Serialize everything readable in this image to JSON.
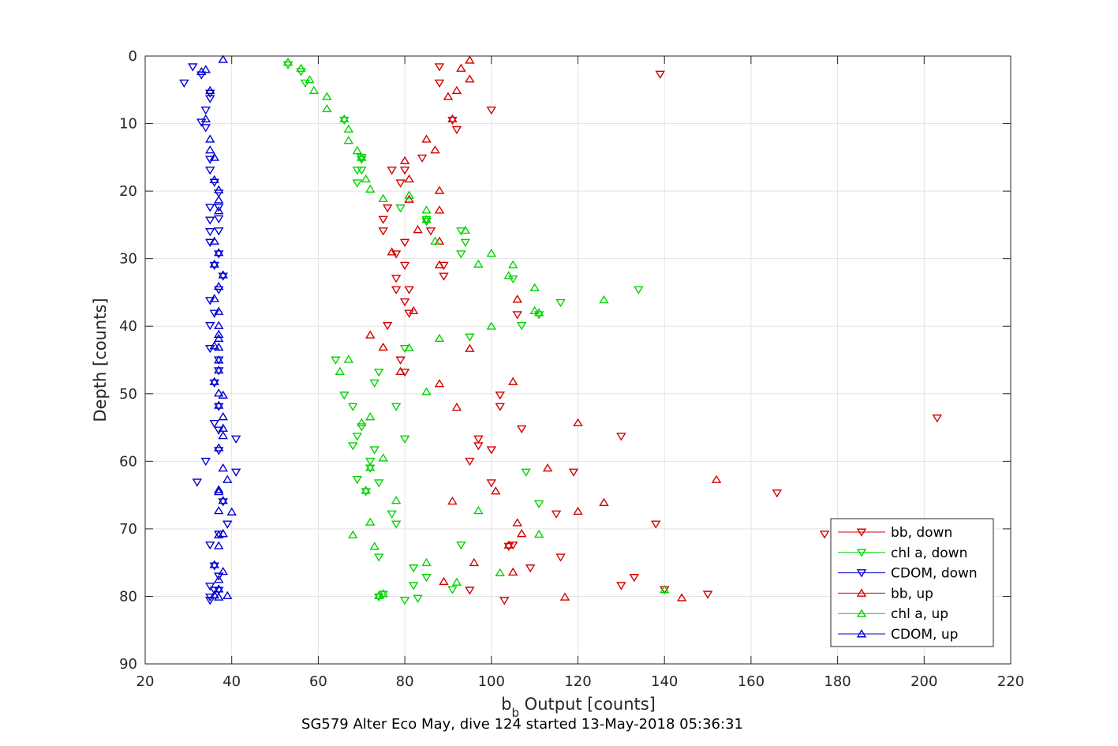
{
  "chart_data": {
    "type": "scatter",
    "xlabel_main": "b",
    "xlabel_sub": "b",
    "xlabel_rest": " Output [counts]",
    "ylabel": "Depth [counts]",
    "footer": "SG579 Alter Eco May, dive 124 started 13-May-2018 05:36:31",
    "xlim": [
      20,
      220
    ],
    "ylim": [
      0,
      90
    ],
    "y_reversed": true,
    "grid": true,
    "legend_position": "bottom-right",
    "xticks": [
      "20",
      "40",
      "60",
      "80",
      "100",
      "120",
      "140",
      "160",
      "180",
      "200",
      "220"
    ],
    "yticks": [
      "0",
      "10",
      "20",
      "30",
      "40",
      "50",
      "60",
      "70",
      "80",
      "90"
    ],
    "series": [
      {
        "name": "bb, down",
        "color": "#d40000",
        "marker": "triangle-down",
        "points": [
          [
            139,
            2.7
          ],
          [
            91,
            9.5
          ],
          [
            77,
            16.9
          ],
          [
            79,
            18.8
          ],
          [
            76,
            22.5
          ],
          [
            75,
            24.2
          ],
          [
            75,
            25.9
          ],
          [
            80,
            27.6
          ],
          [
            78,
            29.3
          ],
          [
            80,
            31
          ],
          [
            78,
            32.9
          ],
          [
            78,
            34.6
          ],
          [
            81,
            34.6
          ],
          [
            80,
            36.4
          ],
          [
            81,
            38.1
          ],
          [
            76,
            39.9
          ],
          [
            80,
            46.8
          ],
          [
            102,
            50.2
          ],
          [
            102,
            51.9
          ],
          [
            203,
            53.6
          ],
          [
            107,
            55.2
          ],
          [
            130,
            56.3
          ],
          [
            97,
            56.7
          ],
          [
            97,
            57.7
          ],
          [
            100,
            58.3
          ],
          [
            95,
            60
          ],
          [
            119,
            61.6
          ],
          [
            100,
            63.2
          ],
          [
            166,
            64.7
          ],
          [
            115,
            67.8
          ],
          [
            138,
            69.3
          ],
          [
            177,
            70.8
          ],
          [
            105,
            72.4
          ],
          [
            104,
            72.6
          ],
          [
            116,
            74.2
          ],
          [
            109,
            75.8
          ],
          [
            133,
            77.2
          ],
          [
            130,
            78.4
          ],
          [
            140,
            79
          ],
          [
            150,
            79.7
          ],
          [
            95,
            79.1
          ],
          [
            103,
            80.6
          ],
          [
            88,
            1.6
          ],
          [
            88,
            4
          ],
          [
            100,
            8
          ],
          [
            92,
            10.9
          ],
          [
            84,
            15.1
          ],
          [
            80,
            16.9
          ],
          [
            86,
            25.9
          ],
          [
            89,
            31
          ],
          [
            89,
            32.6
          ],
          [
            106,
            38.3
          ],
          [
            79,
            45
          ]
        ]
      },
      {
        "name": "chl a, down",
        "color": "#00d400",
        "marker": "triangle-down",
        "points": [
          [
            53,
            1.3
          ],
          [
            56,
            2.3
          ],
          [
            57,
            4
          ],
          [
            66,
            9.5
          ],
          [
            70,
            15
          ],
          [
            70,
            15.3
          ],
          [
            69,
            16.9
          ],
          [
            70,
            16.9
          ],
          [
            69,
            18.8
          ],
          [
            79,
            22.5
          ],
          [
            85,
            24.2
          ],
          [
            85,
            24.5
          ],
          [
            93,
            25.9
          ],
          [
            94,
            27.6
          ],
          [
            93,
            29.3
          ],
          [
            105,
            33
          ],
          [
            134,
            34.6
          ],
          [
            116,
            36.5
          ],
          [
            111,
            38.3
          ],
          [
            107,
            39.9
          ],
          [
            95,
            41.6
          ],
          [
            80,
            43.3
          ],
          [
            64,
            45
          ],
          [
            74,
            46.8
          ],
          [
            73,
            48.4
          ],
          [
            66,
            50.2
          ],
          [
            68,
            51.9
          ],
          [
            78,
            51.9
          ],
          [
            70,
            54.9
          ],
          [
            69,
            56.3
          ],
          [
            80,
            56.7
          ],
          [
            68,
            57.7
          ],
          [
            73,
            58.3
          ],
          [
            72,
            60
          ],
          [
            108,
            61.6
          ],
          [
            72,
            61
          ],
          [
            69,
            62.7
          ],
          [
            74,
            63.2
          ],
          [
            71,
            64.5
          ],
          [
            111,
            66.3
          ],
          [
            77,
            67.8
          ],
          [
            78,
            69.3
          ],
          [
            93,
            72.4
          ],
          [
            74,
            74.2
          ],
          [
            82,
            75.8
          ],
          [
            85,
            77.2
          ],
          [
            82,
            78.4
          ],
          [
            91,
            79
          ],
          [
            74,
            80.1
          ],
          [
            80,
            80.6
          ],
          [
            83,
            80.3
          ],
          [
            75,
            79.7
          ]
        ]
      },
      {
        "name": "CDOM, down",
        "color": "#0000d4",
        "marker": "triangle-down",
        "points": [
          [
            31,
            1.6
          ],
          [
            29,
            4
          ],
          [
            33,
            2.8
          ],
          [
            35,
            5.5
          ],
          [
            35,
            6.3
          ],
          [
            34,
            8
          ],
          [
            33,
            9.8
          ],
          [
            34,
            10.6
          ],
          [
            35,
            15.3
          ],
          [
            35,
            16.9
          ],
          [
            36,
            18.7
          ],
          [
            37,
            20.3
          ],
          [
            37,
            22.4
          ],
          [
            35,
            22.4
          ],
          [
            37,
            24.1
          ],
          [
            35,
            24.3
          ],
          [
            37,
            25.9
          ],
          [
            35,
            26
          ],
          [
            35,
            27.6
          ],
          [
            37,
            29.3
          ],
          [
            36,
            31
          ],
          [
            38,
            32.6
          ],
          [
            37,
            34.6
          ],
          [
            35,
            36.2
          ],
          [
            36,
            38.1
          ],
          [
            35,
            39.9
          ],
          [
            35,
            43.3
          ],
          [
            37,
            45
          ],
          [
            37,
            46.6
          ],
          [
            36,
            48.4
          ],
          [
            37,
            51.9
          ],
          [
            36,
            54.4
          ],
          [
            37,
            55.4
          ],
          [
            41,
            56.7
          ],
          [
            37,
            58.4
          ],
          [
            34,
            60
          ],
          [
            41,
            61.6
          ],
          [
            32,
            63.1
          ],
          [
            38,
            66
          ],
          [
            39,
            69.3
          ],
          [
            37,
            70.8
          ],
          [
            35,
            72.4
          ],
          [
            36,
            75.5
          ],
          [
            37,
            77
          ],
          [
            35,
            78.5
          ],
          [
            36,
            79.1
          ],
          [
            37,
            79.1
          ],
          [
            35,
            80.1
          ],
          [
            35,
            80.6
          ]
        ]
      },
      {
        "name": "bb, up",
        "color": "#d40000",
        "marker": "triangle-up",
        "points": [
          [
            95,
            0.6
          ],
          [
            93,
            1.8
          ],
          [
            95,
            3.4
          ],
          [
            92,
            5.1
          ],
          [
            90,
            6
          ],
          [
            91,
            9.3
          ],
          [
            85,
            12.3
          ],
          [
            87,
            13.9
          ],
          [
            80,
            15.5
          ],
          [
            81,
            18.2
          ],
          [
            88,
            19.9
          ],
          [
            81,
            21.2
          ],
          [
            88,
            22.8
          ],
          [
            83,
            25.7
          ],
          [
            88,
            27.4
          ],
          [
            77,
            29
          ],
          [
            88,
            30.9
          ],
          [
            106,
            36
          ],
          [
            82,
            37.7
          ],
          [
            72,
            41.3
          ],
          [
            75,
            43.1
          ],
          [
            95,
            43.3
          ],
          [
            79,
            46.7
          ],
          [
            88,
            48.5
          ],
          [
            105,
            48.2
          ],
          [
            92,
            52
          ],
          [
            120,
            54.3
          ],
          [
            113,
            61
          ],
          [
            152,
            62.7
          ],
          [
            101,
            64.4
          ],
          [
            91,
            65.9
          ],
          [
            126,
            66.1
          ],
          [
            120,
            67.4
          ],
          [
            106,
            69.1
          ],
          [
            107,
            70.7
          ],
          [
            104,
            72.4
          ],
          [
            96,
            75
          ],
          [
            105,
            76.4
          ],
          [
            89,
            77.8
          ],
          [
            117,
            80.1
          ],
          [
            144,
            80.2
          ]
        ]
      },
      {
        "name": "chl a, up",
        "color": "#00d400",
        "marker": "triangle-up",
        "points": [
          [
            53,
            0.9
          ],
          [
            56,
            1.8
          ],
          [
            58,
            3.5
          ],
          [
            59,
            5.1
          ],
          [
            62,
            6
          ],
          [
            62,
            7.8
          ],
          [
            66,
            9.3
          ],
          [
            67,
            10.8
          ],
          [
            67,
            12.5
          ],
          [
            69,
            14
          ],
          [
            70,
            15
          ],
          [
            71,
            18.2
          ],
          [
            72,
            19.7
          ],
          [
            75,
            21.1
          ],
          [
            81,
            20.6
          ],
          [
            85,
            22.8
          ],
          [
            85,
            24.2
          ],
          [
            87,
            27.4
          ],
          [
            94,
            25.8
          ],
          [
            100,
            29.2
          ],
          [
            97,
            30.8
          ],
          [
            105,
            30.9
          ],
          [
            104,
            32.5
          ],
          [
            110,
            34.3
          ],
          [
            126,
            36.1
          ],
          [
            110,
            37.7
          ],
          [
            111,
            38
          ],
          [
            100,
            40
          ],
          [
            88,
            41.8
          ],
          [
            81,
            43.2
          ],
          [
            67,
            44.9
          ],
          [
            65,
            46.7
          ],
          [
            85,
            49.7
          ],
          [
            72,
            53.4
          ],
          [
            70,
            54.3
          ],
          [
            75,
            59.5
          ],
          [
            72,
            60.9
          ],
          [
            71,
            64.3
          ],
          [
            78,
            65.8
          ],
          [
            97,
            67.3
          ],
          [
            72,
            69
          ],
          [
            68,
            70.9
          ],
          [
            111,
            70.8
          ],
          [
            73,
            72.6
          ],
          [
            85,
            75
          ],
          [
            102,
            76.5
          ],
          [
            92,
            77.9
          ],
          [
            140,
            79
          ],
          [
            75,
            79.6
          ],
          [
            74,
            79.9
          ]
        ]
      },
      {
        "name": "CDOM, up",
        "color": "#0000d4",
        "marker": "triangle-up",
        "points": [
          [
            38,
            0.5
          ],
          [
            34,
            2
          ],
          [
            33,
            2.3
          ],
          [
            35,
            5.1
          ],
          [
            34,
            9.3
          ],
          [
            35,
            12.3
          ],
          [
            35,
            13.9
          ],
          [
            36,
            15
          ],
          [
            36,
            18.3
          ],
          [
            37,
            19.8
          ],
          [
            37,
            21.3
          ],
          [
            37,
            22.9
          ],
          [
            36,
            27.4
          ],
          [
            37,
            29.1
          ],
          [
            36,
            30.8
          ],
          [
            38,
            32.4
          ],
          [
            37,
            34.1
          ],
          [
            36,
            35.9
          ],
          [
            37,
            37.8
          ],
          [
            37,
            39.9
          ],
          [
            37,
            41.2
          ],
          [
            37,
            41.8
          ],
          [
            36,
            42.9
          ],
          [
            37,
            43.1
          ],
          [
            37,
            45
          ],
          [
            37,
            46.5
          ],
          [
            36,
            48.2
          ],
          [
            37,
            49.9
          ],
          [
            38,
            50.2
          ],
          [
            37,
            51.7
          ],
          [
            38,
            53.4
          ],
          [
            38,
            55.1
          ],
          [
            38,
            56.2
          ],
          [
            37,
            58
          ],
          [
            38,
            61
          ],
          [
            39,
            62.7
          ],
          [
            37,
            64.2
          ],
          [
            37,
            64.5
          ],
          [
            38,
            65.8
          ],
          [
            40,
            67.5
          ],
          [
            37,
            67.3
          ],
          [
            38,
            70.7
          ],
          [
            37,
            70.9
          ],
          [
            37,
            72.5
          ],
          [
            36,
            75.3
          ],
          [
            38,
            76.3
          ],
          [
            37,
            77.5
          ],
          [
            37,
            78.9
          ],
          [
            39,
            79.9
          ],
          [
            36,
            79.8
          ],
          [
            37,
            80.1
          ]
        ]
      }
    ]
  }
}
